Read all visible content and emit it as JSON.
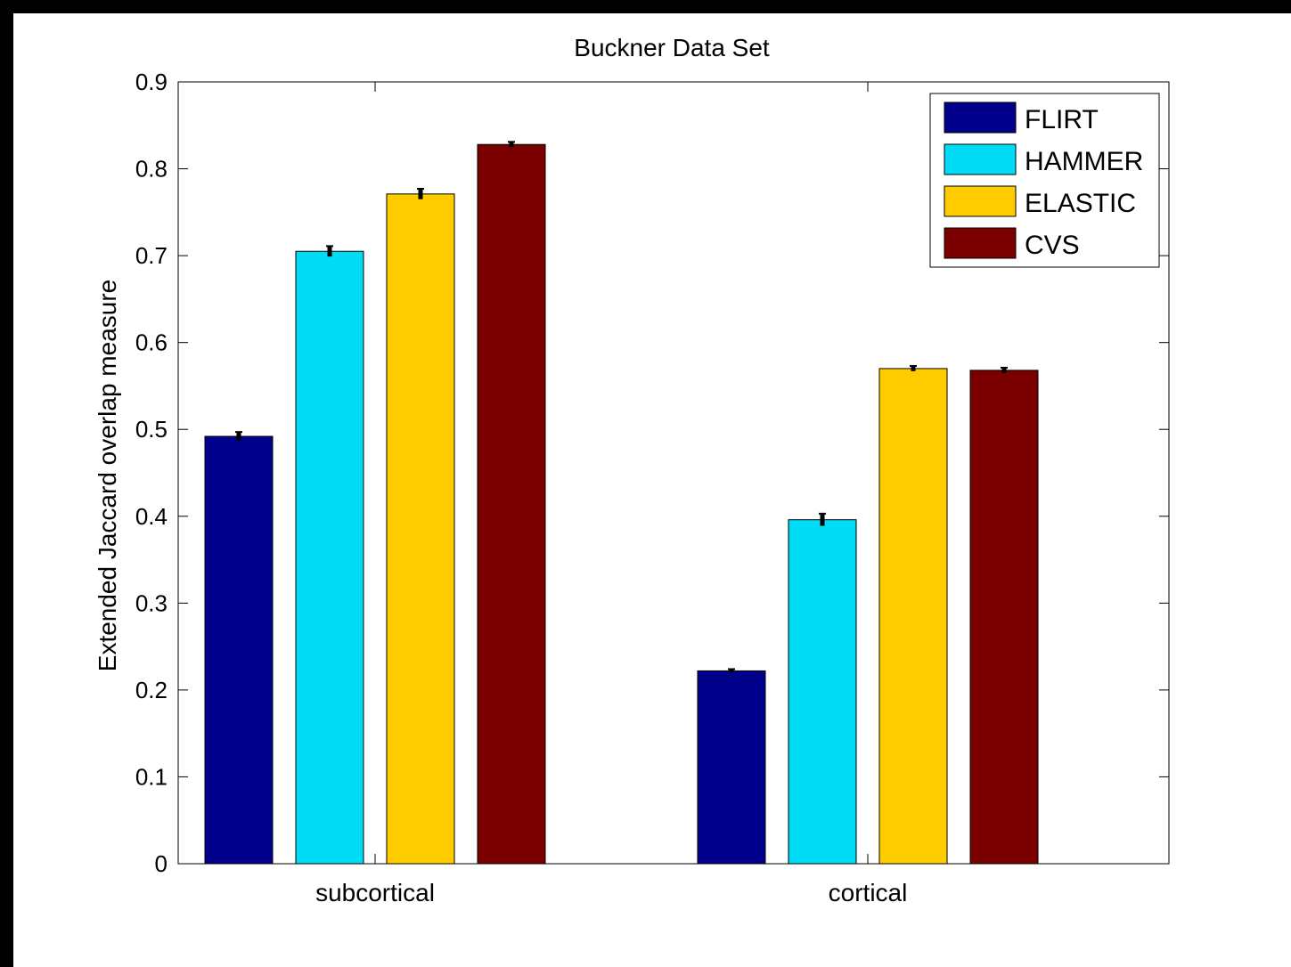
{
  "chart_data": {
    "type": "bar",
    "title": "Buckner Data Set",
    "xlabel": "",
    "ylabel": "Extended Jaccard overlap measure",
    "categories": [
      "subcortical",
      "cortical"
    ],
    "series": [
      {
        "name": "FLIRT",
        "color": "#00008b",
        "values": [
          0.492,
          0.222
        ],
        "errors": [
          0.005,
          0.002
        ]
      },
      {
        "name": "HAMMER",
        "color": "#00dcf5",
        "values": [
          0.705,
          0.396
        ],
        "errors": [
          0.006,
          0.007
        ]
      },
      {
        "name": "ELASTIC",
        "color": "#ffcc00",
        "values": [
          0.771,
          0.57
        ],
        "errors": [
          0.006,
          0.003
        ]
      },
      {
        "name": "CVS",
        "color": "#7a0000",
        "values": [
          0.828,
          0.568
        ],
        "errors": [
          0.003,
          0.003
        ]
      }
    ],
    "ylim": [
      0,
      0.9
    ],
    "yticks": [
      "0",
      "0.1",
      "0.2",
      "0.3",
      "0.4",
      "0.5",
      "0.6",
      "0.7",
      "0.8",
      "0.9"
    ],
    "legend_position": "top-right",
    "grid": false
  }
}
